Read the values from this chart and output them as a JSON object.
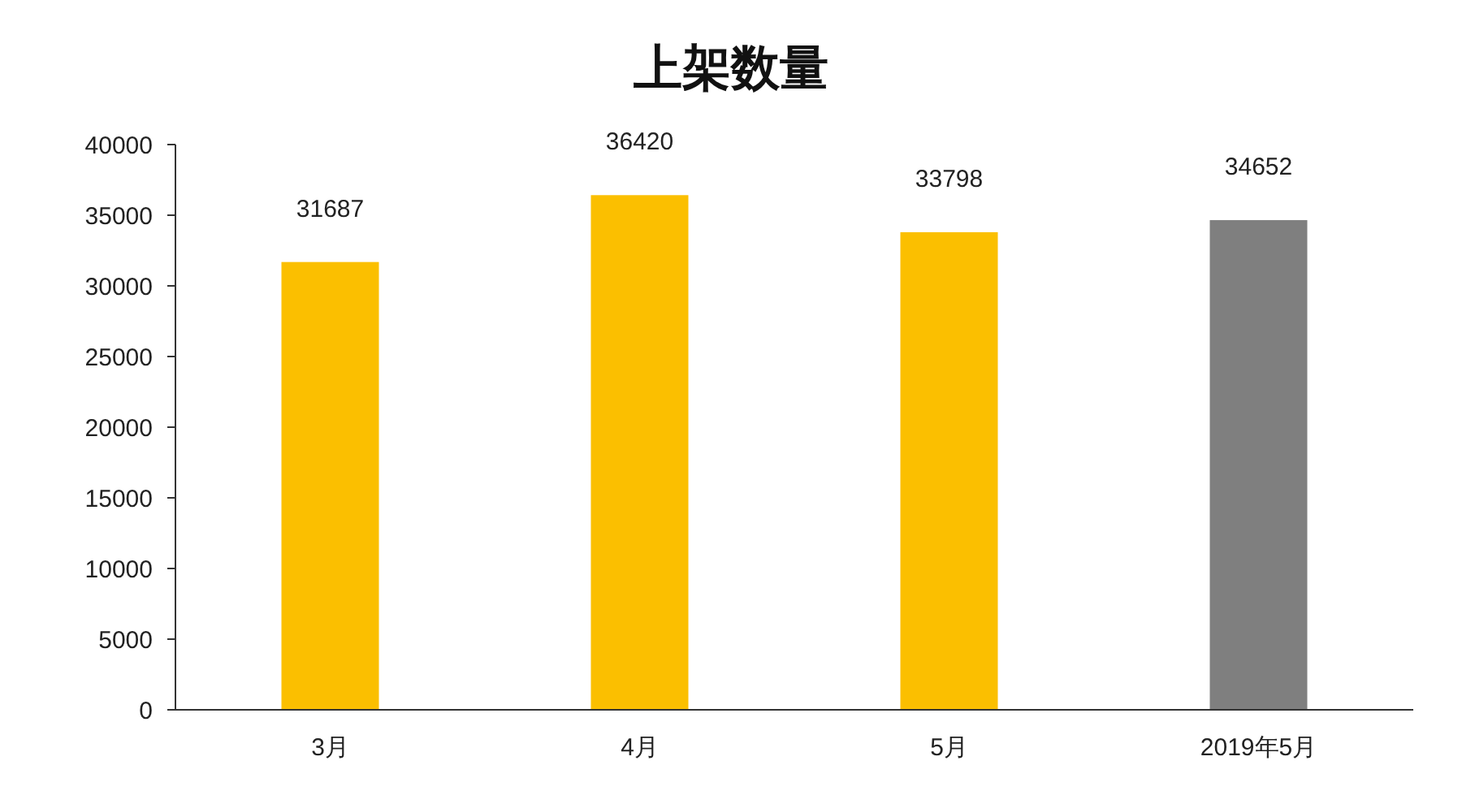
{
  "chart_data": {
    "type": "bar",
    "title": "上架数量",
    "categories": [
      "3月",
      "4月",
      "5月",
      "2019年5月"
    ],
    "values": [
      31687,
      36420,
      33798,
      34652
    ],
    "colors": [
      "#fbbf00",
      "#fbbf00",
      "#fbbf00",
      "#7f7f7f"
    ],
    "ylim": [
      0,
      40000
    ],
    "yticks": [
      0,
      5000,
      10000,
      15000,
      20000,
      25000,
      30000,
      35000,
      40000
    ],
    "data_labels": true
  }
}
